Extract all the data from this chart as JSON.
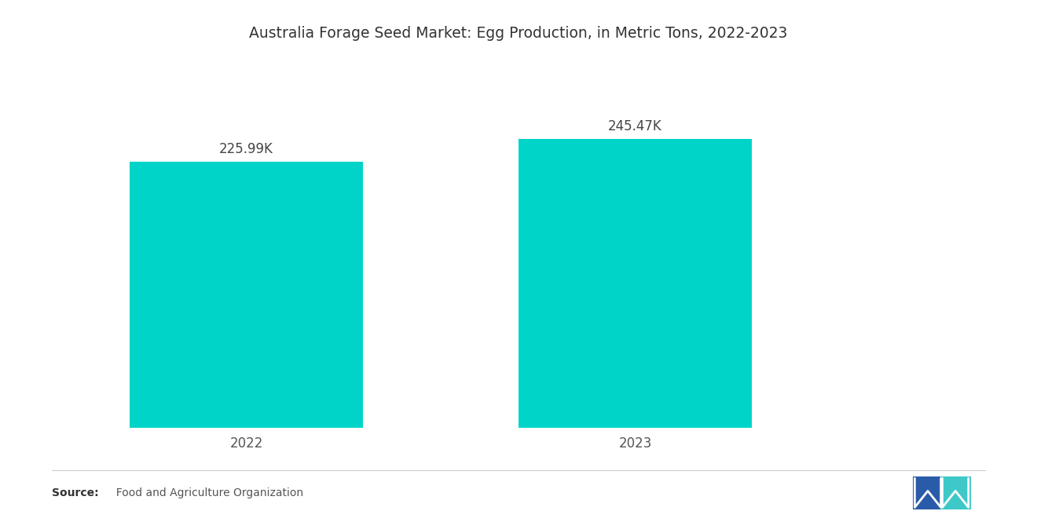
{
  "title": "Australia Forage Seed Market: Egg Production, in Metric Tons, 2022-2023",
  "categories": [
    "2022",
    "2023"
  ],
  "values": [
    225990,
    245470
  ],
  "labels": [
    "225.99K",
    "245.47K"
  ],
  "bar_color": "#00D4C8",
  "background_color": "#ffffff",
  "title_fontsize": 13.5,
  "label_fontsize": 12,
  "tick_fontsize": 12,
  "source_bold": "Source:",
  "source_rest": "  Food and Agriculture Organization",
  "ylim": [
    0,
    310000
  ],
  "bar_positions": [
    1,
    2
  ],
  "bar_width": 0.6,
  "xlim": [
    0.5,
    2.9
  ],
  "logo_blue": "#2A5BA8",
  "logo_teal": "#3EC8C8"
}
